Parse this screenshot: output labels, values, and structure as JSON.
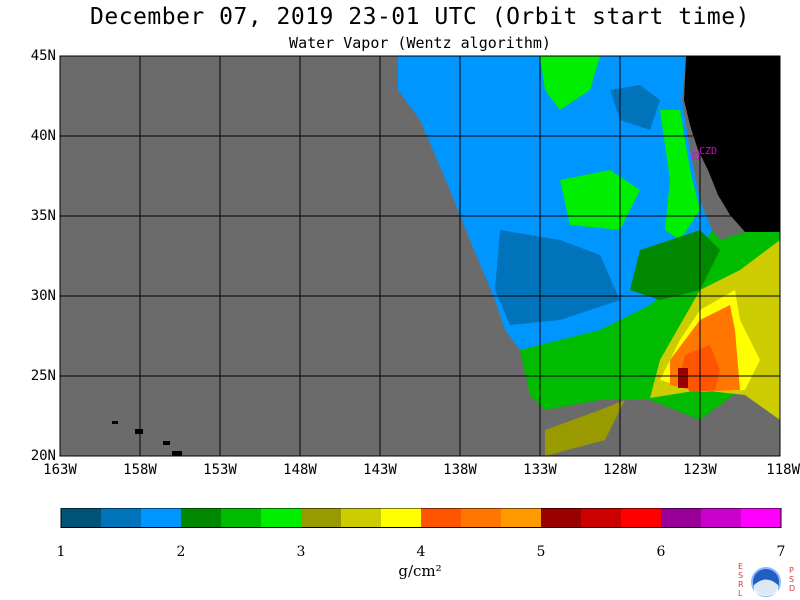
{
  "header": {
    "title": "December 07, 2019  23-01 UTC  (Orbit start time)",
    "subtitle": "Water Vapor (Wentz algorithm)"
  },
  "map": {
    "lat_ticks": [
      "45N",
      "40N",
      "35N",
      "30N",
      "25N",
      "20N"
    ],
    "lon_ticks": [
      "163W",
      "158W",
      "153W",
      "148W",
      "143W",
      "138W",
      "133W",
      "128W",
      "123W",
      "118W"
    ],
    "lat_range": [
      20,
      45
    ],
    "lon_range": [
      -163,
      -118
    ],
    "station_label": "CZD",
    "colors": {
      "no_data": "#6b6b6b",
      "land": "#000000",
      "grid": "#000000"
    }
  },
  "colorbar": {
    "unit": "g/cm²",
    "tick_labels": [
      "1",
      "2",
      "3",
      "4",
      "5",
      "6",
      "7"
    ],
    "range": [
      1,
      7
    ],
    "colors": [
      "#005577",
      "#0073bb",
      "#0096ff",
      "#008800",
      "#00bb00",
      "#00ee00",
      "#999900",
      "#cccc00",
      "#ffff00",
      "#ff5500",
      "#ff7700",
      "#ff9900",
      "#990000",
      "#cc0000",
      "#ff0000",
      "#990099",
      "#cc00cc",
      "#ff00ff"
    ]
  },
  "logo": {
    "left_letters": [
      "E",
      "S",
      "R",
      "L"
    ],
    "right_letters": [
      "P",
      "S",
      "D"
    ],
    "center_text": "NOAA"
  }
}
